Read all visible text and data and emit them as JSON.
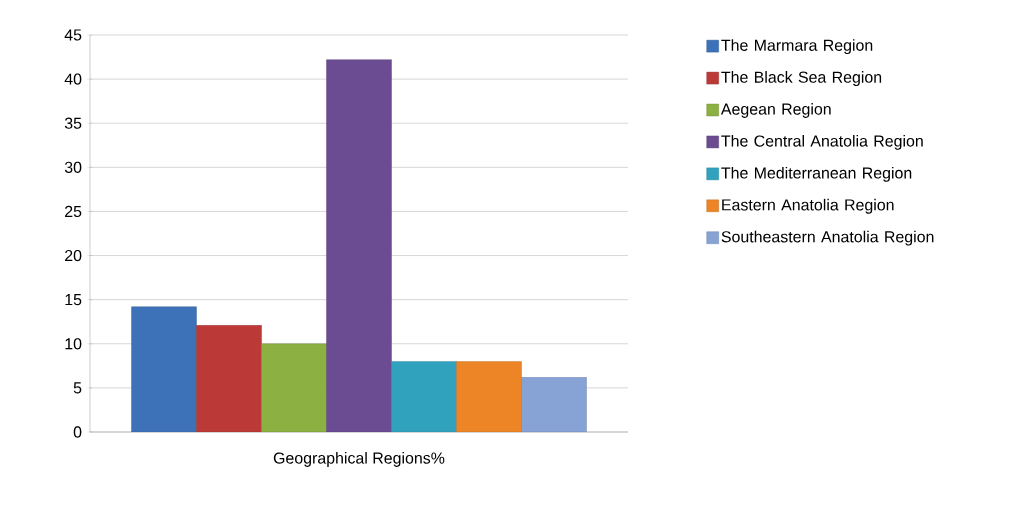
{
  "chart_data": {
    "type": "bar",
    "categories": [
      "Geographical Regions%"
    ],
    "series": [
      {
        "name": "The Marmara Region",
        "color": "#3d72b8",
        "values": [
          14.2
        ]
      },
      {
        "name": "The Black Sea Region",
        "color": "#bb3a37",
        "values": [
          12.1
        ]
      },
      {
        "name": "Aegean Region",
        "color": "#8db043",
        "values": [
          10
        ]
      },
      {
        "name": "The Central Anatolia Region",
        "color": "#6b4c93",
        "values": [
          42.2
        ]
      },
      {
        "name": "The Mediterranean Region",
        "color": "#31a2be",
        "values": [
          8
        ]
      },
      {
        "name": "Eastern Anatolia Region",
        "color": "#ed8527",
        "values": [
          8
        ]
      },
      {
        "name": "Southeastern Anatolia Region",
        "color": "#87a2d4",
        "values": [
          6.2
        ]
      }
    ],
    "ylim": [
      0,
      45
    ],
    "yticks": [
      0,
      5,
      10,
      15,
      20,
      25,
      30,
      35,
      40,
      45
    ],
    "grid": "y",
    "legend": "right"
  }
}
